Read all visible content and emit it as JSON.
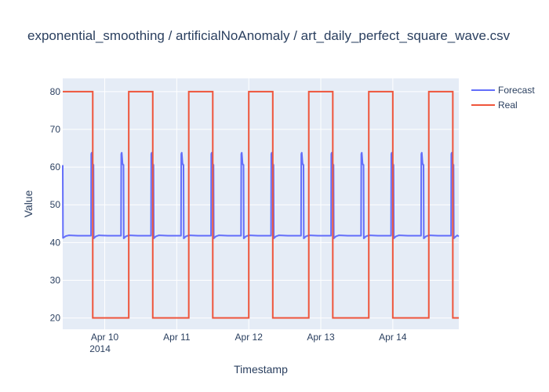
{
  "chart_data": {
    "type": "line",
    "title": "exponential_smoothing / artificialNoAnomaly / art_daily_perfect_square_wave.csv",
    "xlabel": "Timestamp",
    "ylabel": "Value",
    "xlim": [
      "2014-04-09T10:00",
      "2014-04-14T22:00"
    ],
    "ylim": [
      17,
      83.5
    ],
    "x_ticks": [
      {
        "x": "2014-04-10T00:00",
        "label": "Apr 10",
        "sublabel": "2014"
      },
      {
        "x": "2014-04-11T00:00",
        "label": "Apr 11"
      },
      {
        "x": "2014-04-12T00:00",
        "label": "Apr 12"
      },
      {
        "x": "2014-04-13T00:00",
        "label": "Apr 13"
      },
      {
        "x": "2014-04-14T00:00",
        "label": "Apr 14"
      }
    ],
    "y_ticks": [
      20,
      30,
      40,
      50,
      60,
      70,
      80
    ],
    "grid": true,
    "legend_position": "top-right",
    "series": [
      {
        "name": "Forecast",
        "color": "#636efa",
        "data": [
          [
            "2014-04-09T10:00",
            60.5
          ],
          [
            "2014-04-09T10:05",
            41.2
          ],
          [
            "2014-04-09T11:00",
            41.7
          ],
          [
            "2014-04-09T12:00",
            41.9
          ],
          [
            "2014-04-09T15:00",
            41.8
          ],
          [
            "2014-04-09T19:25",
            41.8
          ],
          [
            "2014-04-09T19:30",
            63.5
          ],
          [
            "2014-04-09T19:40",
            63.8
          ],
          [
            "2014-04-09T19:55",
            61.0
          ],
          [
            "2014-04-09T20:05",
            60.6
          ],
          [
            "2014-04-09T20:15",
            60.6
          ],
          [
            "2014-04-09T20:20",
            41.1
          ],
          [
            "2014-04-09T21:00",
            41.6
          ],
          [
            "2014-04-09T22:00",
            41.9
          ],
          [
            "2014-04-10T01:00",
            41.8
          ],
          [
            "2014-04-10T05:25",
            41.8
          ],
          [
            "2014-04-10T05:30",
            63.5
          ],
          [
            "2014-04-10T05:40",
            63.8
          ],
          [
            "2014-04-10T05:55",
            61.0
          ],
          [
            "2014-04-10T06:05",
            60.6
          ],
          [
            "2014-04-10T06:15",
            60.6
          ],
          [
            "2014-04-10T06:20",
            41.1
          ],
          [
            "2014-04-10T07:00",
            41.6
          ],
          [
            "2014-04-10T08:00",
            41.9
          ],
          [
            "2014-04-10T11:00",
            41.8
          ],
          [
            "2014-04-10T15:25",
            41.8
          ],
          [
            "2014-04-10T15:30",
            63.5
          ],
          [
            "2014-04-10T15:40",
            63.8
          ],
          [
            "2014-04-10T15:55",
            61.0
          ],
          [
            "2014-04-10T16:05",
            60.6
          ],
          [
            "2014-04-10T16:15",
            60.6
          ],
          [
            "2014-04-10T16:20",
            41.1
          ],
          [
            "2014-04-10T17:00",
            41.6
          ],
          [
            "2014-04-10T18:00",
            41.9
          ],
          [
            "2014-04-10T21:00",
            41.8
          ],
          [
            "2014-04-11T01:25",
            41.8
          ],
          [
            "2014-04-11T01:30",
            63.5
          ],
          [
            "2014-04-11T01:40",
            63.8
          ],
          [
            "2014-04-11T01:55",
            61.0
          ],
          [
            "2014-04-11T02:05",
            60.6
          ],
          [
            "2014-04-11T02:15",
            60.6
          ],
          [
            "2014-04-11T02:20",
            41.1
          ],
          [
            "2014-04-11T03:00",
            41.6
          ],
          [
            "2014-04-11T04:00",
            41.9
          ],
          [
            "2014-04-11T07:00",
            41.8
          ],
          [
            "2014-04-11T11:25",
            41.8
          ],
          [
            "2014-04-11T11:30",
            63.5
          ],
          [
            "2014-04-11T11:40",
            63.8
          ],
          [
            "2014-04-11T11:55",
            61.0
          ],
          [
            "2014-04-11T12:05",
            60.6
          ],
          [
            "2014-04-11T12:15",
            60.6
          ],
          [
            "2014-04-11T12:20",
            41.1
          ],
          [
            "2014-04-11T13:00",
            41.6
          ],
          [
            "2014-04-11T14:00",
            41.9
          ],
          [
            "2014-04-11T17:00",
            41.8
          ],
          [
            "2014-04-11T21:25",
            41.8
          ],
          [
            "2014-04-11T21:30",
            63.5
          ],
          [
            "2014-04-11T21:40",
            63.8
          ],
          [
            "2014-04-11T21:55",
            61.0
          ],
          [
            "2014-04-11T22:05",
            60.6
          ],
          [
            "2014-04-11T22:15",
            60.6
          ],
          [
            "2014-04-11T22:20",
            41.1
          ],
          [
            "2014-04-11T23:00",
            41.6
          ],
          [
            "2014-04-12T00:00",
            41.9
          ],
          [
            "2014-04-12T03:00",
            41.8
          ],
          [
            "2014-04-12T07:25",
            41.8
          ],
          [
            "2014-04-12T07:30",
            63.5
          ],
          [
            "2014-04-12T07:40",
            63.8
          ],
          [
            "2014-04-12T07:55",
            61.0
          ],
          [
            "2014-04-12T08:05",
            60.6
          ],
          [
            "2014-04-12T08:15",
            60.6
          ],
          [
            "2014-04-12T08:20",
            41.1
          ],
          [
            "2014-04-12T09:00",
            41.6
          ],
          [
            "2014-04-12T10:00",
            41.9
          ],
          [
            "2014-04-12T13:00",
            41.8
          ],
          [
            "2014-04-12T17:25",
            41.8
          ],
          [
            "2014-04-12T17:30",
            63.5
          ],
          [
            "2014-04-12T17:40",
            63.8
          ],
          [
            "2014-04-12T17:55",
            61.0
          ],
          [
            "2014-04-12T18:05",
            60.6
          ],
          [
            "2014-04-12T18:15",
            60.6
          ],
          [
            "2014-04-12T18:20",
            41.1
          ],
          [
            "2014-04-12T19:00",
            41.6
          ],
          [
            "2014-04-12T20:00",
            41.9
          ],
          [
            "2014-04-12T23:00",
            41.8
          ],
          [
            "2014-04-13T03:25",
            41.8
          ],
          [
            "2014-04-13T03:30",
            63.5
          ],
          [
            "2014-04-13T03:40",
            63.8
          ],
          [
            "2014-04-13T03:55",
            61.0
          ],
          [
            "2014-04-13T04:05",
            60.6
          ],
          [
            "2014-04-13T04:15",
            60.6
          ],
          [
            "2014-04-13T04:20",
            41.1
          ],
          [
            "2014-04-13T05:00",
            41.6
          ],
          [
            "2014-04-13T06:00",
            41.9
          ],
          [
            "2014-04-13T09:00",
            41.8
          ],
          [
            "2014-04-13T13:25",
            41.8
          ],
          [
            "2014-04-13T13:30",
            63.5
          ],
          [
            "2014-04-13T13:40",
            63.8
          ],
          [
            "2014-04-13T13:55",
            61.0
          ],
          [
            "2014-04-13T14:05",
            60.6
          ],
          [
            "2014-04-13T14:15",
            60.6
          ],
          [
            "2014-04-13T14:20",
            41.1
          ],
          [
            "2014-04-13T15:00",
            41.6
          ],
          [
            "2014-04-13T16:00",
            41.9
          ],
          [
            "2014-04-13T19:00",
            41.8
          ],
          [
            "2014-04-13T23:25",
            41.8
          ],
          [
            "2014-04-13T23:30",
            63.5
          ],
          [
            "2014-04-13T23:40",
            63.8
          ],
          [
            "2014-04-13T23:55",
            61.0
          ],
          [
            "2014-04-14T00:05",
            60.6
          ],
          [
            "2014-04-14T00:15",
            60.6
          ],
          [
            "2014-04-14T00:20",
            41.1
          ],
          [
            "2014-04-14T01:00",
            41.6
          ],
          [
            "2014-04-14T02:00",
            41.9
          ],
          [
            "2014-04-14T05:00",
            41.8
          ],
          [
            "2014-04-14T09:25",
            41.8
          ],
          [
            "2014-04-14T09:30",
            63.5
          ],
          [
            "2014-04-14T09:40",
            63.8
          ],
          [
            "2014-04-14T09:55",
            61.0
          ],
          [
            "2014-04-14T10:05",
            60.6
          ],
          [
            "2014-04-14T10:15",
            60.6
          ],
          [
            "2014-04-14T10:20",
            41.1
          ],
          [
            "2014-04-14T11:00",
            41.6
          ],
          [
            "2014-04-14T12:00",
            41.9
          ],
          [
            "2014-04-14T15:00",
            41.8
          ],
          [
            "2014-04-14T19:25",
            41.8
          ],
          [
            "2014-04-14T19:30",
            63.5
          ],
          [
            "2014-04-14T19:40",
            63.8
          ],
          [
            "2014-04-14T19:55",
            61.0
          ],
          [
            "2014-04-14T20:05",
            60.6
          ],
          [
            "2014-04-14T20:15",
            60.6
          ],
          [
            "2014-04-14T20:20",
            41.1
          ],
          [
            "2014-04-14T21:00",
            41.6
          ],
          [
            "2014-04-14T21:30",
            41.9
          ],
          [
            "2014-04-14T22:00",
            41.6
          ]
        ]
      },
      {
        "name": "Real",
        "color": "#ef553b",
        "data": [
          [
            "2014-04-09T10:00",
            80
          ],
          [
            "2014-04-09T20:00",
            80
          ],
          [
            "2014-04-09T20:00",
            20
          ],
          [
            "2014-04-10T08:00",
            20
          ],
          [
            "2014-04-10T08:00",
            80
          ],
          [
            "2014-04-10T16:00",
            80
          ],
          [
            "2014-04-10T16:00",
            20
          ],
          [
            "2014-04-11T04:00",
            20
          ],
          [
            "2014-04-11T04:00",
            80
          ],
          [
            "2014-04-11T12:00",
            80
          ],
          [
            "2014-04-11T12:00",
            20
          ],
          [
            "2014-04-12T00:00",
            20
          ],
          [
            "2014-04-12T00:00",
            80
          ],
          [
            "2014-04-12T08:00",
            80
          ],
          [
            "2014-04-12T08:00",
            20
          ],
          [
            "2014-04-12T20:00",
            20
          ],
          [
            "2014-04-12T20:00",
            80
          ],
          [
            "2014-04-13T04:00",
            80
          ],
          [
            "2014-04-13T04:00",
            20
          ],
          [
            "2014-04-13T16:00",
            20
          ],
          [
            "2014-04-13T16:00",
            80
          ],
          [
            "2014-04-14T00:00",
            80
          ],
          [
            "2014-04-14T00:00",
            20
          ],
          [
            "2014-04-14T12:00",
            20
          ],
          [
            "2014-04-14T12:00",
            80
          ],
          [
            "2014-04-14T20:00",
            80
          ],
          [
            "2014-04-14T20:00",
            20
          ],
          [
            "2014-04-14T22:00",
            20
          ]
        ]
      }
    ]
  }
}
